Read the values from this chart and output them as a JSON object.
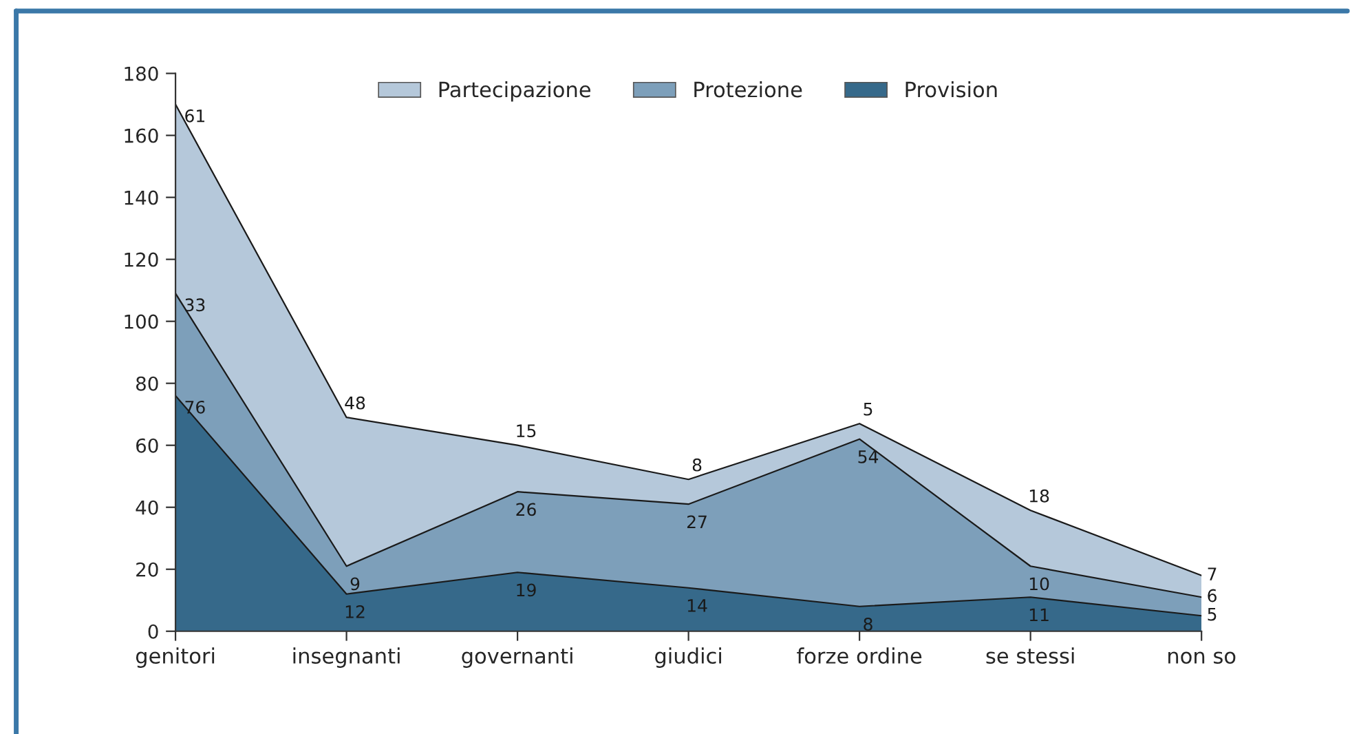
{
  "chart_data": {
    "type": "area",
    "stacked": true,
    "categories": [
      "genitori",
      "insegnanti",
      "governanti",
      "giudici",
      "forze ordine",
      "se stessi",
      "non so"
    ],
    "series": [
      {
        "name": "Provision",
        "color": "#36698a",
        "values": [
          76,
          12,
          19,
          14,
          8,
          11,
          5
        ]
      },
      {
        "name": "Protezione",
        "color": "#7d9fba",
        "values": [
          33,
          9,
          26,
          27,
          54,
          10,
          6
        ]
      },
      {
        "name": "Partecipazione",
        "color": "#b5c8da",
        "values": [
          61,
          48,
          15,
          8,
          5,
          18,
          7
        ]
      }
    ],
    "ylim": [
      0,
      180
    ],
    "yticks": [
      0,
      20,
      40,
      60,
      80,
      100,
      120,
      140,
      160,
      180
    ],
    "data_labels": true,
    "legend": "top",
    "grid": false
  }
}
